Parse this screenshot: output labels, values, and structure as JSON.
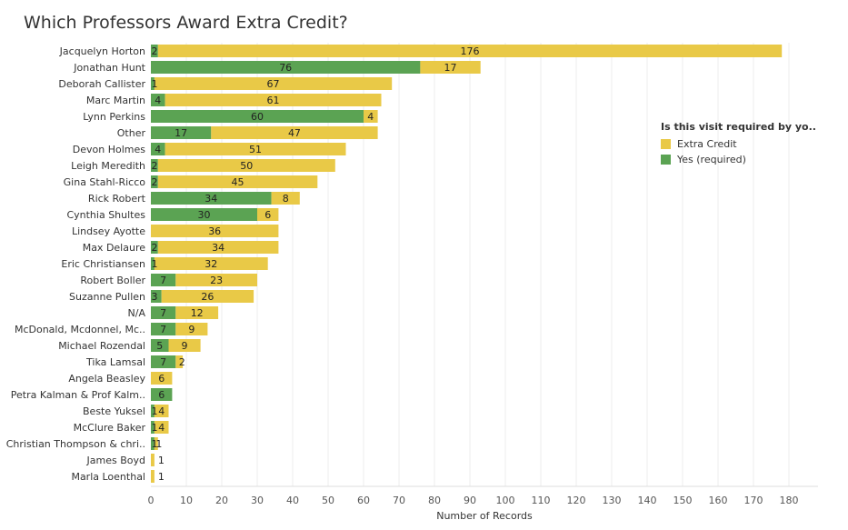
{
  "title": "Which Professors Award Extra Credit?",
  "legend": {
    "title": "Is this visit required by yo..",
    "items": [
      {
        "label": "Extra Credit",
        "color": "#E9C947"
      },
      {
        "label": "Yes (required)",
        "color": "#5BA353"
      }
    ]
  },
  "chart_data": {
    "type": "bar",
    "orientation": "horizontal",
    "stacked": true,
    "title": "Which Professors Award Extra Credit?",
    "xlabel": "Number of Records",
    "ylabel": "",
    "xlim": [
      0,
      180
    ],
    "xticks": [
      0,
      10,
      20,
      30,
      40,
      50,
      60,
      70,
      80,
      90,
      100,
      110,
      120,
      130,
      140,
      150,
      160,
      170,
      180
    ],
    "grid": true,
    "legend_position": "right",
    "categories": [
      "Jacquelyn Horton",
      "Jonathan Hunt",
      "Deborah Callister",
      "Marc Martin",
      "Lynn Perkins",
      "Other",
      "Devon Holmes",
      "Leigh Meredith",
      "Gina Stahl-Ricco",
      "Rick Robert",
      "Cynthia Shultes",
      "Lindsey Ayotte",
      "Max Delaure",
      "Eric Christiansen",
      "Robert Boller",
      "Suzanne Pullen",
      "N/A",
      "McDonald, Mcdonnel, Mc..",
      "Michael Rozendal",
      "Tika Lamsal",
      "Angela Beasley",
      "Petra Kalman & Prof Kalm..",
      "Beste Yuksel",
      "McClure Baker",
      "Christian Thompson & chri..",
      "James Boyd",
      "Marla Loenthal"
    ],
    "series": [
      {
        "name": "Yes (required)",
        "color": "#5BA353",
        "values": [
          2,
          76,
          1,
          4,
          60,
          17,
          4,
          2,
          2,
          34,
          30,
          0,
          2,
          1,
          7,
          3,
          7,
          7,
          5,
          7,
          0,
          6,
          1,
          1,
          1,
          0,
          0
        ]
      },
      {
        "name": "Extra Credit",
        "color": "#E9C947",
        "values": [
          176,
          17,
          67,
          61,
          4,
          47,
          51,
          50,
          45,
          8,
          6,
          36,
          34,
          32,
          23,
          26,
          12,
          9,
          9,
          2,
          6,
          0,
          4,
          4,
          1,
          1,
          1
        ]
      }
    ]
  }
}
